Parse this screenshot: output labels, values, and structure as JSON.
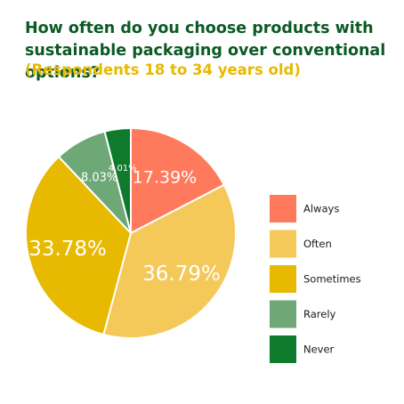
{
  "chart_data": {
    "type": "pie",
    "title": "How often do you choose products with sustainable packaging over conventional options?",
    "subtitle": "(Respondents 18 to 34 years old)",
    "slices": [
      {
        "label": "Always",
        "value": 17.39,
        "display": "17.39%",
        "color": "#ff7a5c"
      },
      {
        "label": "Often",
        "value": 36.79,
        "display": "36.79%",
        "color": "#f4c95a"
      },
      {
        "label": "Sometimes",
        "value": 33.78,
        "display": "33.78%",
        "color": "#e7b900"
      },
      {
        "label": "Rarely",
        "value": 8.03,
        "display": "8.03%",
        "color": "#6ea877"
      },
      {
        "label": "Never",
        "value": 4.01,
        "display": "4.01%",
        "color": "#0f7a2c"
      }
    ],
    "legend_placement": "right",
    "label_color": "#ffffff"
  }
}
